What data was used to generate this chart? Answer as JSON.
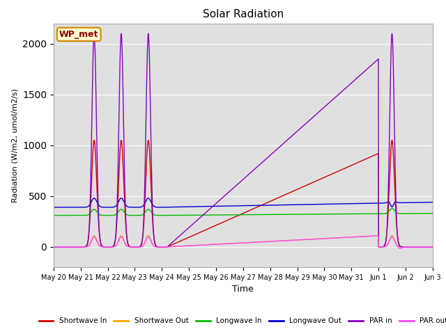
{
  "title": "Solar Radiation",
  "ylabel": "Radiation (W/m2, umol/m2/s)",
  "xlabel": "Time",
  "ylim": [
    -200,
    2200
  ],
  "annotation": "WP_met",
  "background_color": "#e0e0e0",
  "tick_labels": [
    "May 20",
    "May 21",
    "May 22",
    "May 23",
    "May 24",
    "May 25",
    "May 26",
    "May 27",
    "May 28",
    "May 29",
    "May 30",
    "May 31",
    "Jun 1",
    "Jun 2",
    "Jun 3"
  ],
  "legend": [
    {
      "label": "Shortwave In",
      "color": "#cc0000"
    },
    {
      "label": "Shortwave Out",
      "color": "#ffaa00"
    },
    {
      "label": "Longwave In",
      "color": "#00bb00"
    },
    {
      "label": "Longwave Out",
      "color": "#0000cc"
    },
    {
      "label": "PAR in",
      "color": "#8800bb"
    },
    {
      "label": "PAR out",
      "color": "#ff44ff"
    }
  ]
}
